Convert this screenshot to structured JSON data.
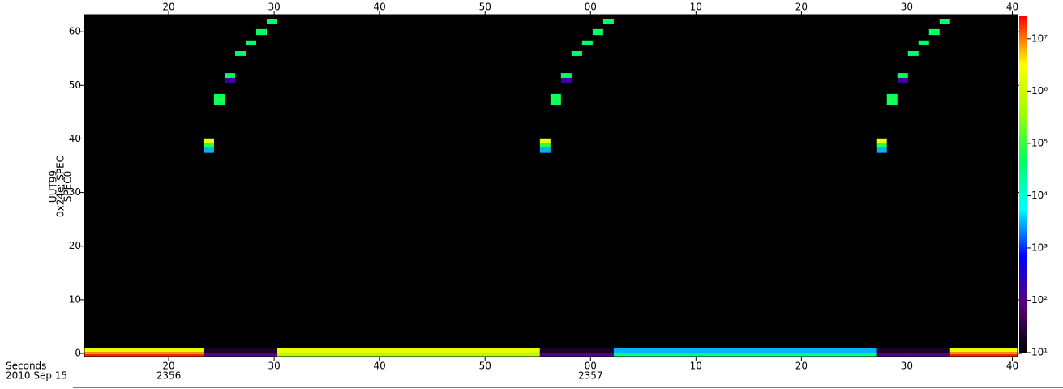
{
  "chart_data": {
    "type": "spectrogram",
    "ylabel": [
      "UUT99",
      "0x24e: SPEC",
      "SPEC0"
    ],
    "xlim": [
      12,
      100.5
    ],
    "xticks": [
      20,
      30,
      40,
      50,
      {
        "value": 60,
        "label": "00"
      },
      {
        "value": 70,
        "label": "10"
      },
      {
        "value": 80,
        "label": "20"
      },
      {
        "value": 90,
        "label": "30"
      },
      {
        "value": 100,
        "label": "40"
      }
    ],
    "x_sublabels": [
      {
        "value": 20,
        "label": "2356"
      },
      {
        "value": 60,
        "label": "2357"
      }
    ],
    "x_row_titles": [
      "Seconds",
      "2010 Sep 15"
    ],
    "ylim": [
      -0.6,
      63.2
    ],
    "yticks": [
      0,
      10,
      20,
      30,
      40,
      50,
      60
    ],
    "zscale": "log",
    "zlim": [
      10,
      27000000
    ],
    "zticks": [
      {
        "value": 10,
        "label": "10¹"
      },
      {
        "value": 100,
        "label": "10²"
      },
      {
        "value": 1000,
        "label": "10³"
      },
      {
        "value": 10000,
        "label": "10⁴"
      },
      {
        "value": 100000,
        "label": "10⁵"
      },
      {
        "value": 1000000,
        "label": "10⁶"
      },
      {
        "value": 10000000,
        "label": "10⁷"
      }
    ],
    "colormap": [
      "#000000",
      "#5a0078",
      "#0000ff",
      "#00ffff",
      "#00ff60",
      "#a0ff00",
      "#ffff00",
      "#ff0000"
    ],
    "background": "#000000",
    "cells": [
      {
        "x": [
          23.3,
          24.3
        ],
        "y": [
          39.2,
          40.1
        ],
        "z": 2000000
      },
      {
        "x": [
          23.3,
          24.3
        ],
        "y": [
          38.3,
          39.2
        ],
        "z": 80000
      },
      {
        "x": [
          23.3,
          24.3
        ],
        "y": [
          37.4,
          38.3
        ],
        "z": 3000
      },
      {
        "x": [
          24.3,
          25.3
        ],
        "y": [
          46.4,
          48.4
        ],
        "z": 60000
      },
      {
        "x": [
          25.3,
          26.3
        ],
        "y": [
          51.4,
          52.3
        ],
        "z": 50000
      },
      {
        "x": [
          25.3,
          26.3
        ],
        "y": [
          50.5,
          51.4
        ],
        "z": 150
      },
      {
        "x": [
          26.3,
          27.3
        ],
        "y": [
          55.5,
          56.4
        ],
        "z": 40000
      },
      {
        "x": [
          27.3,
          28.3
        ],
        "y": [
          57.5,
          58.4
        ],
        "z": 40000
      },
      {
        "x": [
          28.3,
          29.3
        ],
        "y": [
          59.4,
          60.5
        ],
        "z": 40000
      },
      {
        "x": [
          29.3,
          30.3
        ],
        "y": [
          61.4,
          62.4
        ],
        "z": 40000
      },
      {
        "x": [
          55.2,
          56.2
        ],
        "y": [
          39.2,
          40.1
        ],
        "z": 2000000
      },
      {
        "x": [
          55.2,
          56.2
        ],
        "y": [
          38.3,
          39.2
        ],
        "z": 80000
      },
      {
        "x": [
          55.2,
          56.2
        ],
        "y": [
          37.4,
          38.3
        ],
        "z": 3000
      },
      {
        "x": [
          56.2,
          57.2
        ],
        "y": [
          46.4,
          48.4
        ],
        "z": 60000
      },
      {
        "x": [
          57.2,
          58.2
        ],
        "y": [
          51.4,
          52.3
        ],
        "z": 50000
      },
      {
        "x": [
          57.2,
          58.2
        ],
        "y": [
          50.5,
          51.4
        ],
        "z": 150
      },
      {
        "x": [
          58.2,
          59.2
        ],
        "y": [
          55.5,
          56.4
        ],
        "z": 40000
      },
      {
        "x": [
          59.2,
          60.2
        ],
        "y": [
          57.5,
          58.4
        ],
        "z": 40000
      },
      {
        "x": [
          60.2,
          61.2
        ],
        "y": [
          59.4,
          60.5
        ],
        "z": 40000
      },
      {
        "x": [
          61.2,
          62.2
        ],
        "y": [
          61.4,
          62.4
        ],
        "z": 40000
      },
      {
        "x": [
          87.1,
          88.1
        ],
        "y": [
          39.2,
          40.1
        ],
        "z": 2000000
      },
      {
        "x": [
          87.1,
          88.1
        ],
        "y": [
          38.3,
          39.2
        ],
        "z": 80000
      },
      {
        "x": [
          87.1,
          88.1
        ],
        "y": [
          37.4,
          38.3
        ],
        "z": 3000
      },
      {
        "x": [
          88.1,
          89.1
        ],
        "y": [
          46.4,
          48.4
        ],
        "z": 60000
      },
      {
        "x": [
          89.1,
          90.1
        ],
        "y": [
          51.4,
          52.3
        ],
        "z": 50000
      },
      {
        "x": [
          89.1,
          90.1
        ],
        "y": [
          50.5,
          51.4
        ],
        "z": 150
      },
      {
        "x": [
          90.1,
          91.1
        ],
        "y": [
          55.5,
          56.4
        ],
        "z": 40000
      },
      {
        "x": [
          91.1,
          92.1
        ],
        "y": [
          57.5,
          58.4
        ],
        "z": 40000
      },
      {
        "x": [
          92.1,
          93.1
        ],
        "y": [
          59.4,
          60.5
        ],
        "z": 40000
      },
      {
        "x": [
          93.1,
          94.1
        ],
        "y": [
          61.4,
          62.4
        ],
        "z": 40000
      },
      {
        "x": [
          12,
          23.3
        ],
        "y": [
          0.3,
          1.0
        ],
        "z": 2000000
      },
      {
        "x": [
          12,
          23.3
        ],
        "y": [
          -0.15,
          0.3
        ],
        "z": 8000000
      },
      {
        "x": [
          12,
          23.3
        ],
        "y": [
          -0.6,
          -0.15
        ],
        "z": 20000000
      },
      {
        "x": [
          23.3,
          30.3
        ],
        "y": [
          0,
          1.0
        ],
        "z": 20
      },
      {
        "x": [
          23.3,
          30.3
        ],
        "y": [
          -0.6,
          0
        ],
        "z": 100
      },
      {
        "x": [
          30.3,
          55.2
        ],
        "y": [
          0,
          1.0
        ],
        "z": 2000000
      },
      {
        "x": [
          30.3,
          55.2
        ],
        "y": [
          -0.6,
          0
        ],
        "z": 600000
      },
      {
        "x": [
          55.2,
          62.2
        ],
        "y": [
          0,
          1.0
        ],
        "z": 20
      },
      {
        "x": [
          55.2,
          62.2
        ],
        "y": [
          -0.6,
          0
        ],
        "z": 100
      },
      {
        "x": [
          62.2,
          87.1
        ],
        "y": [
          0,
          1.0
        ],
        "z": 3000
      },
      {
        "x": [
          62.2,
          87.1
        ],
        "y": [
          -0.6,
          0
        ],
        "z": 30000
      },
      {
        "x": [
          87.1,
          94.1
        ],
        "y": [
          0,
          1.0
        ],
        "z": 20
      },
      {
        "x": [
          87.1,
          94.1
        ],
        "y": [
          -0.6,
          0
        ],
        "z": 100
      },
      {
        "x": [
          94.1,
          100.5
        ],
        "y": [
          0.3,
          1.0
        ],
        "z": 2000000
      },
      {
        "x": [
          94.1,
          100.5
        ],
        "y": [
          -0.15,
          0.3
        ],
        "z": 8000000
      },
      {
        "x": [
          94.1,
          100.5
        ],
        "y": [
          -0.6,
          -0.15
        ],
        "z": 20000000
      }
    ]
  }
}
